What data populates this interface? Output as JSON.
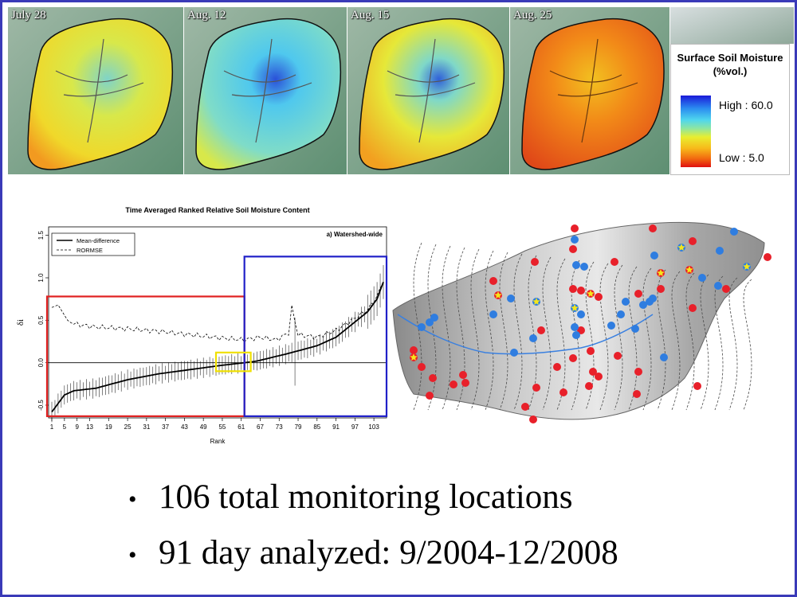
{
  "panels": [
    {
      "date": "July 28",
      "palette": "dry-mid"
    },
    {
      "date": "Aug. 12",
      "palette": "wet"
    },
    {
      "date": "Aug. 15",
      "palette": "mid"
    },
    {
      "date": "Aug. 25",
      "palette": "dry"
    }
  ],
  "legend": {
    "title": "Surface Soil Moisture (%vol.)",
    "high_label": "High : 60.0",
    "low_label": "Low : 5.0",
    "colors": [
      "#1a1ad9",
      "#4fd6ee",
      "#e8ee30",
      "#f26a10",
      "#e01010"
    ]
  },
  "chart_data": {
    "type": "line",
    "title": "Time Averaged Ranked Relative Soil Moisture Content",
    "panel_label": "a) Watershed-wide",
    "xlabel": "Rank",
    "ylabel": "δi",
    "xlim": [
      1,
      106
    ],
    "ylim": [
      -0.65,
      1.6
    ],
    "x_ticks": [
      1,
      5,
      9,
      13,
      19,
      25,
      31,
      37,
      43,
      49,
      55,
      61,
      67,
      73,
      79,
      85,
      91,
      97,
      103
    ],
    "y_ticks": [
      -0.5,
      0.0,
      0.5,
      1.0,
      1.5
    ],
    "y_tick_labels": [
      "-0.5",
      "0.0",
      "0.5",
      "1.0",
      "1.5"
    ],
    "legend": [
      "Mean-difference",
      "RORMSE"
    ],
    "series": [
      {
        "name": "Mean-difference",
        "style": "solid",
        "anchors": [
          [
            1,
            -0.58
          ],
          [
            3,
            -0.48
          ],
          [
            5,
            -0.38
          ],
          [
            8,
            -0.33
          ],
          [
            15,
            -0.3
          ],
          [
            25,
            -0.2
          ],
          [
            35,
            -0.13
          ],
          [
            45,
            -0.08
          ],
          [
            55,
            -0.03
          ],
          [
            62,
            0.0
          ],
          [
            66,
            0.02
          ],
          [
            75,
            0.1
          ],
          [
            85,
            0.2
          ],
          [
            91,
            0.3
          ],
          [
            96,
            0.45
          ],
          [
            101,
            0.6
          ],
          [
            104,
            0.75
          ],
          [
            106,
            0.95
          ]
        ]
      },
      {
        "name": "RORMSE",
        "style": "dashed",
        "anchors": [
          [
            1,
            0.65
          ],
          [
            3,
            0.68
          ],
          [
            6,
            0.5
          ],
          [
            9,
            0.45
          ],
          [
            15,
            0.42
          ],
          [
            25,
            0.4
          ],
          [
            35,
            0.37
          ],
          [
            45,
            0.33
          ],
          [
            55,
            0.29
          ],
          [
            62,
            0.27
          ],
          [
            67,
            0.3
          ],
          [
            72,
            0.27
          ],
          [
            76,
            0.35
          ],
          [
            77,
            0.65
          ],
          [
            79,
            0.33
          ],
          [
            85,
            0.3
          ],
          [
            91,
            0.38
          ],
          [
            96,
            0.5
          ],
          [
            101,
            0.62
          ],
          [
            104,
            0.78
          ],
          [
            106,
            0.96
          ]
        ]
      }
    ],
    "highlight_boxes": [
      {
        "color": "#e02020",
        "x": [
          1,
          62
        ],
        "y": [
          -0.63,
          0.78
        ]
      },
      {
        "color": "#2020c8",
        "x": [
          62,
          106
        ],
        "y": [
          -0.63,
          1.25
        ]
      },
      {
        "color": "#f0e000",
        "x": [
          53,
          64
        ],
        "y": [
          -0.1,
          0.12
        ]
      }
    ]
  },
  "map": {
    "symbol_colors": {
      "red": "#e8202a",
      "blue": "#2f7de0",
      "star": "#f5e61a"
    }
  },
  "bullets": [
    "106 total monitoring locations",
    "91 day analyzed: 9/2004-12/2008"
  ]
}
